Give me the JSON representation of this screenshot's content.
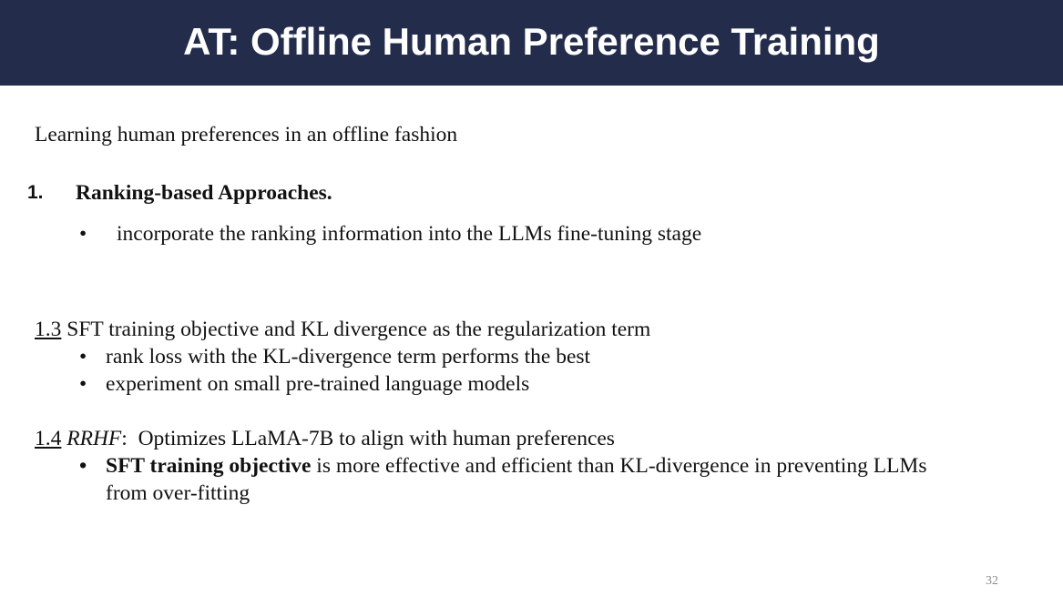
{
  "slide": {
    "title": "AT: Offline Human Preference Training",
    "intro": "Learning human preferences in an offline fashion",
    "section1": {
      "number": "1.",
      "heading": "Ranking-based Approaches.",
      "bullet": "•",
      "bullets": [
        "incorporate the ranking information into the LLMs fine-tuning stage"
      ]
    },
    "section13": {
      "number": "1.3",
      "heading": " SFT training objective and KL divergence as the regularization term",
      "bullet": "•",
      "bullets": [
        "rank loss with the KL-divergence term performs the best",
        "experiment on small pre-trained language models"
      ]
    },
    "section14": {
      "number": "1.4",
      "heading_italic": "RRHF",
      "heading_rest": ":  Optimizes LLaMA-7B to align with human preferences",
      "bullet": "•",
      "bullet_bold": "SFT training objective",
      "bullet_rest_line1": " is more effective and efficient than KL-divergence in preventing LLMs",
      "bullet_rest_line2": "from over-fitting"
    },
    "page_number": "32"
  }
}
